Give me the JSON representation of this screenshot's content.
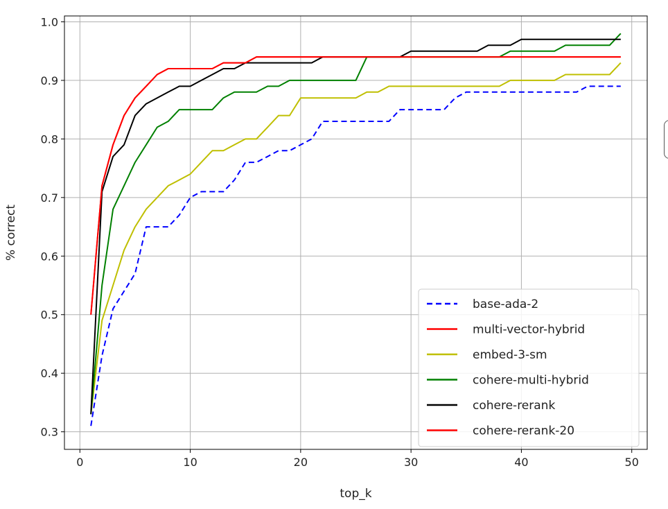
{
  "chart_data": {
    "type": "line",
    "title": "",
    "xlabel": "top_k",
    "ylabel": "% correct",
    "xlim": [
      -1.4,
      51.4
    ],
    "ylim": [
      0.27,
      1.01
    ],
    "xticks": [
      0,
      10,
      20,
      30,
      40,
      50
    ],
    "xtick_labels": [
      "0",
      "10",
      "20",
      "30",
      "40",
      "50"
    ],
    "yticks": [
      0.3,
      0.4,
      0.5,
      0.6,
      0.7,
      0.8,
      0.9,
      1.0
    ],
    "ytick_labels": [
      "0.3",
      "0.4",
      "0.5",
      "0.6",
      "0.7",
      "0.8",
      "0.9",
      "1.0"
    ],
    "grid": true,
    "legend_position": "lower-right",
    "x": [
      1,
      2,
      3,
      4,
      5,
      6,
      7,
      8,
      9,
      10,
      11,
      12,
      13,
      14,
      15,
      16,
      17,
      18,
      19,
      20,
      21,
      22,
      23,
      24,
      25,
      26,
      27,
      28,
      29,
      30,
      31,
      32,
      33,
      34,
      35,
      36,
      37,
      38,
      39,
      40,
      41,
      42,
      43,
      44,
      45,
      46,
      47,
      48,
      49
    ],
    "series": [
      {
        "name": "base-ada-2",
        "color": "#0000ff",
        "style": "dashed",
        "values": [
          0.31,
          0.43,
          0.51,
          0.54,
          0.57,
          0.65,
          0.65,
          0.65,
          0.67,
          0.7,
          0.71,
          0.71,
          0.71,
          0.73,
          0.76,
          0.76,
          0.77,
          0.78,
          0.78,
          0.79,
          0.8,
          0.83,
          0.83,
          0.83,
          0.83,
          0.83,
          0.83,
          0.83,
          0.85,
          0.85,
          0.85,
          0.85,
          0.85,
          0.87,
          0.88,
          0.88,
          0.88,
          0.88,
          0.88,
          0.88,
          0.88,
          0.88,
          0.88,
          0.88,
          0.88,
          0.89,
          0.89,
          0.89,
          0.89
        ]
      },
      {
        "name": "multi-vector-hybrid",
        "color": "#ff0000",
        "style": "solid",
        "values": [
          0.5,
          0.72,
          0.79,
          0.84,
          0.87,
          0.89,
          0.91,
          0.92,
          0.92,
          0.92,
          0.92,
          0.92,
          0.93,
          0.93,
          0.93,
          0.94,
          0.94,
          0.94,
          0.94,
          0.94,
          0.94,
          0.94,
          0.94,
          0.94,
          0.94,
          0.94,
          0.94,
          0.94,
          0.94,
          0.94,
          0.94,
          0.94,
          0.94,
          0.94,
          0.94,
          0.94,
          0.94,
          0.94,
          0.94,
          0.94,
          0.94,
          0.94,
          0.94,
          0.94,
          0.94,
          0.94,
          0.94,
          0.94,
          0.94
        ]
      },
      {
        "name": "embed-3-sm",
        "color": "#bfbf00",
        "style": "solid",
        "values": [
          0.33,
          0.49,
          0.55,
          0.61,
          0.65,
          0.68,
          0.7,
          0.72,
          0.73,
          0.74,
          0.76,
          0.78,
          0.78,
          0.79,
          0.8,
          0.8,
          0.82,
          0.84,
          0.84,
          0.87,
          0.87,
          0.87,
          0.87,
          0.87,
          0.87,
          0.88,
          0.88,
          0.89,
          0.89,
          0.89,
          0.89,
          0.89,
          0.89,
          0.89,
          0.89,
          0.89,
          0.89,
          0.89,
          0.9,
          0.9,
          0.9,
          0.9,
          0.9,
          0.91,
          0.91,
          0.91,
          0.91,
          0.91,
          0.93
        ]
      },
      {
        "name": "cohere-multi-hybrid",
        "color": "#008000",
        "style": "solid",
        "values": [
          0.33,
          0.55,
          0.68,
          0.72,
          0.76,
          0.79,
          0.82,
          0.83,
          0.85,
          0.85,
          0.85,
          0.85,
          0.87,
          0.88,
          0.88,
          0.88,
          0.89,
          0.89,
          0.9,
          0.9,
          0.9,
          0.9,
          0.9,
          0.9,
          0.9,
          0.94,
          0.94,
          0.94,
          0.94,
          0.94,
          0.94,
          0.94,
          0.94,
          0.94,
          0.94,
          0.94,
          0.94,
          0.94,
          0.95,
          0.95,
          0.95,
          0.95,
          0.95,
          0.96,
          0.96,
          0.96,
          0.96,
          0.96,
          0.98
        ]
      },
      {
        "name": "cohere-rerank",
        "color": "#000000",
        "style": "solid",
        "values": [
          0.33,
          0.71,
          0.77,
          0.79,
          0.84,
          0.86,
          0.87,
          0.88,
          0.89,
          0.89,
          0.9,
          0.91,
          0.92,
          0.92,
          0.93,
          0.93,
          0.93,
          0.93,
          0.93,
          0.93,
          0.93,
          0.94,
          0.94,
          0.94,
          0.94,
          0.94,
          0.94,
          0.94,
          0.94,
          0.95,
          0.95,
          0.95,
          0.95,
          0.95,
          0.95,
          0.95,
          0.96,
          0.96,
          0.96,
          0.97,
          0.97,
          0.97,
          0.97,
          0.97,
          0.97,
          0.97,
          0.97,
          0.97,
          0.97
        ]
      },
      {
        "name": "cohere-rerank-20",
        "color": "#ff0000",
        "style": "solid",
        "values": [
          0.5,
          0.72,
          0.79,
          0.84,
          0.87,
          0.89,
          0.91,
          0.92,
          0.92,
          0.92,
          0.92,
          0.92,
          0.93,
          0.93,
          0.93,
          0.94,
          0.94,
          0.94,
          0.94,
          0.94,
          0.94,
          0.94,
          0.94,
          0.94,
          0.94,
          0.94,
          0.94,
          0.94,
          0.94,
          0.94,
          0.94,
          0.94,
          0.94,
          0.94,
          0.94,
          0.94,
          0.94,
          0.94,
          0.94,
          0.94,
          0.94,
          0.94,
          0.94,
          0.94,
          0.94,
          0.94,
          0.94,
          0.94,
          0.94
        ]
      }
    ]
  }
}
